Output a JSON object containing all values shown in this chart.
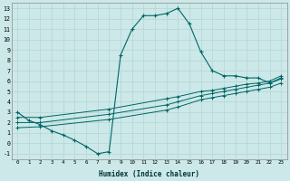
{
  "xlabel": "Humidex (Indice chaleur)",
  "ylabel": "",
  "bg_color": "#cce8e8",
  "grid_color": "#b8d8d8",
  "line_color": "#006666",
  "xlim": [
    -0.5,
    23.5
  ],
  "ylim": [
    -1.5,
    13.5
  ],
  "xticks": [
    0,
    1,
    2,
    3,
    4,
    5,
    6,
    7,
    8,
    9,
    10,
    11,
    12,
    13,
    14,
    15,
    16,
    17,
    18,
    19,
    20,
    21,
    22,
    23
  ],
  "yticks": [
    -1,
    0,
    1,
    2,
    3,
    4,
    5,
    6,
    7,
    8,
    9,
    10,
    11,
    12,
    13
  ],
  "line1_x": [
    0,
    1,
    2,
    3,
    4,
    5,
    6,
    7,
    8,
    9,
    10,
    11,
    12,
    13,
    14,
    15,
    16,
    17,
    18,
    19,
    20,
    21,
    22,
    23
  ],
  "line1_y": [
    3.0,
    2.2,
    1.8,
    1.2,
    0.8,
    0.3,
    -0.3,
    -1.0,
    -0.8,
    8.5,
    11.0,
    12.3,
    12.3,
    12.5,
    13.0,
    11.5,
    8.8,
    7.0,
    6.5,
    6.5,
    6.3,
    6.3,
    5.8,
    6.3
  ],
  "line2_x": [
    0,
    2,
    8,
    13,
    14,
    16,
    17,
    18,
    19,
    20,
    21,
    22,
    23
  ],
  "line2_y": [
    2.5,
    2.5,
    3.3,
    4.3,
    4.5,
    5.0,
    5.1,
    5.3,
    5.5,
    5.7,
    5.8,
    6.0,
    6.5
  ],
  "line3_x": [
    0,
    2,
    8,
    13,
    14,
    16,
    17,
    18,
    19,
    20,
    21,
    22,
    23
  ],
  "line3_y": [
    2.0,
    2.0,
    2.8,
    3.7,
    4.0,
    4.6,
    4.8,
    5.0,
    5.2,
    5.4,
    5.6,
    5.8,
    6.2
  ],
  "line4_x": [
    0,
    2,
    8,
    13,
    14,
    16,
    17,
    18,
    19,
    20,
    21,
    22,
    23
  ],
  "line4_y": [
    1.5,
    1.6,
    2.3,
    3.2,
    3.5,
    4.2,
    4.4,
    4.6,
    4.8,
    5.0,
    5.2,
    5.4,
    5.8
  ]
}
